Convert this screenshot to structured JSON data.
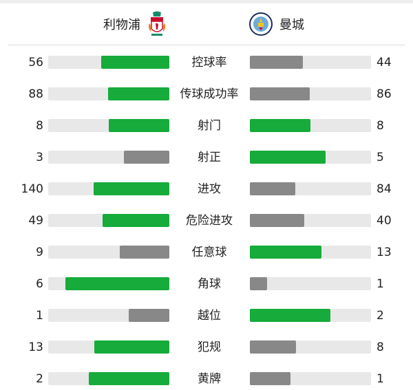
{
  "home_team": {
    "name": "利物浦",
    "logo": "liverpool-crest"
  },
  "away_team": {
    "name": "曼城",
    "logo": "manchester-city-crest"
  },
  "colors": {
    "leader": "#16ab3a",
    "trailer": "#888888",
    "track": "#e8e8e8"
  },
  "stats": [
    {
      "label": "控球率",
      "home": 56,
      "away": 44
    },
    {
      "label": "传球成功率",
      "home": 88,
      "away": 86
    },
    {
      "label": "射门",
      "home": 8,
      "away": 8
    },
    {
      "label": "射正",
      "home": 3,
      "away": 5
    },
    {
      "label": "进攻",
      "home": 140,
      "away": 84
    },
    {
      "label": "危险进攻",
      "home": 49,
      "away": 40
    },
    {
      "label": "任意球",
      "home": 9,
      "away": 13
    },
    {
      "label": "角球",
      "home": 6,
      "away": 1
    },
    {
      "label": "越位",
      "home": 1,
      "away": 2
    },
    {
      "label": "犯规",
      "home": 13,
      "away": 8
    },
    {
      "label": "黄牌",
      "home": 2,
      "away": 1
    }
  ]
}
